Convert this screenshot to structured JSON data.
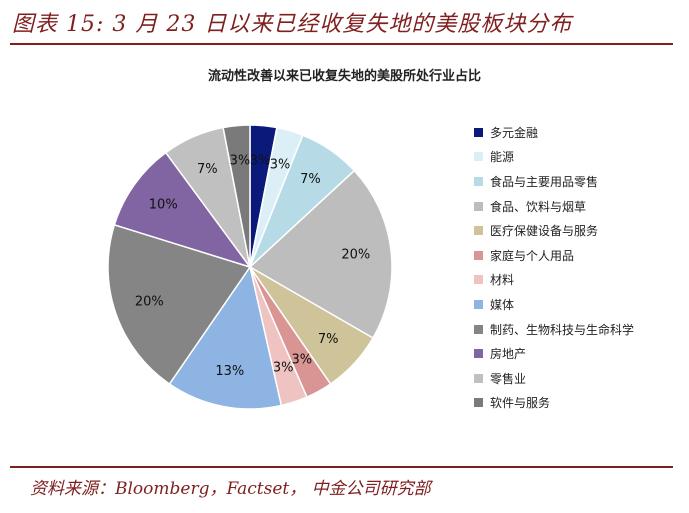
{
  "figure": {
    "title": "图表 15: 3 月 23 日以来已经收复失地的美股板块分布",
    "source": "资料来源：Bloomberg，Factset， 中金公司研究部"
  },
  "chart_data": {
    "type": "pie",
    "title": "流动性改善以来已收复失地的美股所处行业占比",
    "legend_position": "right",
    "slices": [
      {
        "label": "多元金融",
        "value": 3,
        "display": "3%",
        "color": "#0b1a7a"
      },
      {
        "label": "能源",
        "value": 3,
        "display": "3%",
        "color": "#dceff6"
      },
      {
        "label": "食品与主要用品零售",
        "value": 7,
        "display": "7%",
        "color": "#b7dbe6"
      },
      {
        "label": "食品、饮料与烟草",
        "value": 20,
        "display": "20%",
        "color": "#bdbdbd"
      },
      {
        "label": "医疗保健设备与服务",
        "value": 7,
        "display": "7%",
        "color": "#cfc39a"
      },
      {
        "label": "家庭与个人用品",
        "value": 3,
        "display": "3%",
        "color": "#d99593"
      },
      {
        "label": "材料",
        "value": 3,
        "display": "3%",
        "color": "#efc3c2"
      },
      {
        "label": "媒体",
        "value": 13,
        "display": "13%",
        "color": "#8db4e2"
      },
      {
        "label": "制药、生物科技与生命科学",
        "value": 20,
        "display": "20%",
        "color": "#858585"
      },
      {
        "label": "房地产",
        "value": 10,
        "display": "10%",
        "color": "#8164a2"
      },
      {
        "label": "零售业",
        "value": 7,
        "display": "7%",
        "color": "#c0c0c0"
      },
      {
        "label": "软件与服务",
        "value": 3,
        "display": "3%",
        "color": "#7a7a7a"
      }
    ]
  }
}
